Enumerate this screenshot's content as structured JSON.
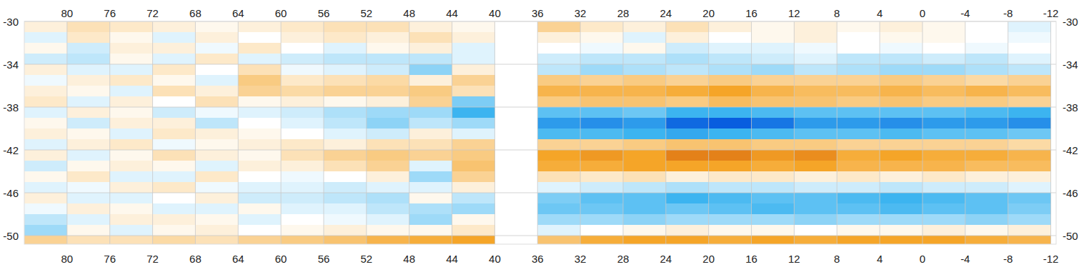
{
  "chart_data": {
    "type": "heatmap",
    "xlim": [
      84,
      -12.5
    ],
    "ylim": [
      -30,
      -50.8
    ],
    "xticks": [
      80,
      76,
      72,
      68,
      64,
      60,
      56,
      52,
      48,
      44,
      40,
      36,
      32,
      28,
      24,
      20,
      16,
      12,
      8,
      4,
      0,
      -4,
      -8,
      -12
    ],
    "yticks": [
      -30,
      -34,
      -38,
      -42,
      -46,
      -50
    ],
    "grid": true,
    "zlim": [
      -1,
      1
    ],
    "x_edges": [
      84,
      80,
      76,
      72,
      68,
      64,
      60,
      56,
      52,
      48,
      44,
      40,
      36,
      32,
      28,
      24,
      20,
      16,
      12,
      8,
      4,
      0,
      -4,
      -8,
      -12
    ],
    "y_edges": [
      -30,
      -31,
      -32,
      -33,
      -34,
      -35,
      -36,
      -37,
      -38,
      -39,
      -40,
      -41,
      -42,
      -43,
      -44,
      -45,
      -46,
      -47,
      -48,
      -49,
      -50,
      -50.8
    ],
    "cells": [
      [
        0.1,
        0.2,
        0.15,
        0.1,
        0.05,
        0.1,
        0.15,
        0.2,
        0.2,
        0.1,
        0.05,
        null,
        0.3,
        0.15,
        0.1,
        0.2,
        0.1,
        0.05,
        0.1,
        0.05,
        0.1,
        0.05,
        0.0,
        -0.1
      ],
      [
        -0.1,
        0.15,
        0.05,
        -0.1,
        0.1,
        0.0,
        0.1,
        0.15,
        0.1,
        0.2,
        0.1,
        null,
        0.1,
        0.05,
        -0.1,
        0.1,
        0.0,
        0.05,
        0.1,
        0.0,
        0.05,
        0.05,
        0.0,
        -0.05
      ],
      [
        0.05,
        -0.15,
        0.1,
        0.1,
        -0.05,
        0.15,
        0.0,
        -0.1,
        0.05,
        0.1,
        -0.1,
        null,
        0.0,
        -0.05,
        0.05,
        -0.15,
        -0.1,
        -0.1,
        -0.05,
        0.0,
        -0.05,
        0.0,
        -0.05,
        0.0
      ],
      [
        -0.15,
        -0.2,
        0.05,
        -0.1,
        0.15,
        -0.1,
        -0.15,
        -0.2,
        -0.2,
        -0.2,
        -0.1,
        null,
        -0.15,
        -0.2,
        -0.2,
        -0.25,
        -0.2,
        -0.15,
        -0.1,
        -0.2,
        -0.2,
        -0.15,
        -0.2,
        -0.1
      ],
      [
        0.1,
        -0.1,
        -0.1,
        0.15,
        0.0,
        0.2,
        -0.05,
        -0.1,
        -0.15,
        -0.35,
        0.1,
        null,
        -0.2,
        -0.3,
        -0.25,
        -0.2,
        -0.25,
        -0.3,
        -0.2,
        -0.25,
        -0.3,
        -0.3,
        -0.25,
        -0.2
      ],
      [
        -0.05,
        0.1,
        0.15,
        0.05,
        -0.1,
        0.35,
        0.15,
        0.2,
        0.25,
        0.1,
        0.3,
        null,
        0.35,
        0.3,
        0.35,
        0.3,
        0.35,
        0.3,
        0.3,
        0.3,
        0.35,
        0.3,
        0.25,
        0.3
      ],
      [
        0.1,
        0.05,
        -0.1,
        0.2,
        0.1,
        0.3,
        0.25,
        0.3,
        0.3,
        0.35,
        0.2,
        null,
        0.5,
        0.5,
        0.5,
        0.55,
        0.6,
        0.5,
        0.45,
        0.45,
        0.5,
        0.45,
        0.5,
        0.45
      ],
      [
        0.15,
        -0.1,
        0.1,
        0.0,
        0.2,
        0.05,
        0.1,
        0.05,
        0.1,
        0.3,
        -0.4,
        null,
        0.35,
        0.4,
        0.4,
        0.35,
        0.45,
        0.4,
        0.4,
        0.35,
        0.4,
        0.35,
        0.35,
        0.3
      ],
      [
        -0.1,
        0.1,
        0.05,
        -0.15,
        -0.05,
        -0.1,
        -0.15,
        -0.25,
        -0.3,
        -0.3,
        -0.6,
        null,
        -0.5,
        -0.5,
        -0.45,
        -0.6,
        -0.6,
        -0.55,
        -0.5,
        -0.5,
        -0.5,
        -0.5,
        -0.55,
        -0.6
      ],
      [
        0.05,
        -0.15,
        0.1,
        0.1,
        -0.2,
        0.0,
        -0.1,
        -0.2,
        -0.35,
        -0.2,
        -0.3,
        null,
        -0.7,
        -0.75,
        -0.7,
        -0.9,
        -0.95,
        -0.85,
        -0.7,
        -0.7,
        -0.75,
        -0.7,
        -0.7,
        -0.75
      ],
      [
        0.1,
        0.05,
        -0.1,
        0.15,
        0.1,
        0.05,
        0.0,
        -0.1,
        -0.15,
        0.1,
        -0.1,
        null,
        -0.55,
        -0.55,
        -0.6,
        -0.65,
        -0.6,
        -0.55,
        -0.5,
        -0.5,
        -0.55,
        -0.5,
        -0.5,
        -0.45
      ],
      [
        -0.1,
        0.1,
        0.15,
        -0.05,
        0.05,
        0.1,
        0.15,
        0.1,
        0.2,
        0.2,
        0.3,
        null,
        0.3,
        0.3,
        0.35,
        0.4,
        0.4,
        0.35,
        0.35,
        0.3,
        0.3,
        0.3,
        0.3,
        0.25
      ],
      [
        0.1,
        -0.1,
        0.05,
        0.2,
        0.1,
        0.05,
        0.2,
        0.3,
        0.35,
        0.3,
        0.35,
        null,
        0.6,
        0.65,
        0.6,
        0.75,
        0.75,
        0.65,
        0.7,
        0.55,
        0.6,
        0.55,
        0.55,
        0.5
      ],
      [
        -0.15,
        0.05,
        0.1,
        0.05,
        -0.1,
        0.1,
        0.1,
        0.2,
        0.3,
        -0.1,
        0.4,
        null,
        0.55,
        0.55,
        0.6,
        0.6,
        0.6,
        0.55,
        0.6,
        0.5,
        0.5,
        0.5,
        0.45,
        0.45
      ],
      [
        0.05,
        0.15,
        -0.1,
        -0.1,
        0.15,
        0.0,
        -0.05,
        0.0,
        0.1,
        -0.3,
        0.3,
        null,
        0.2,
        0.15,
        0.2,
        0.1,
        0.15,
        0.15,
        0.1,
        0.15,
        0.1,
        0.15,
        0.1,
        0.1
      ],
      [
        -0.1,
        -0.05,
        0.1,
        0.15,
        -0.05,
        -0.1,
        -0.1,
        -0.15,
        -0.1,
        -0.1,
        0.1,
        null,
        -0.1,
        -0.15,
        -0.2,
        -0.25,
        -0.2,
        -0.2,
        -0.15,
        -0.15,
        -0.2,
        -0.15,
        -0.15,
        -0.1
      ],
      [
        0.1,
        -0.1,
        -0.1,
        0.0,
        0.1,
        -0.15,
        -0.15,
        -0.2,
        -0.25,
        0.05,
        -0.2,
        null,
        -0.4,
        -0.5,
        -0.5,
        -0.6,
        -0.55,
        -0.5,
        -0.5,
        -0.55,
        -0.6,
        -0.55,
        -0.5,
        -0.45
      ],
      [
        -0.05,
        0.1,
        0.05,
        -0.1,
        -0.1,
        0.05,
        -0.1,
        -0.1,
        -0.2,
        -0.25,
        -0.3,
        null,
        -0.45,
        -0.45,
        -0.5,
        -0.45,
        -0.5,
        -0.55,
        -0.5,
        -0.5,
        -0.55,
        -0.5,
        -0.5,
        -0.4
      ],
      [
        -0.2,
        -0.1,
        0.1,
        0.1,
        0.05,
        -0.1,
        0.0,
        -0.05,
        -0.1,
        -0.3,
        0.05,
        null,
        -0.3,
        -0.3,
        -0.35,
        -0.3,
        -0.3,
        -0.3,
        -0.35,
        -0.3,
        -0.3,
        -0.3,
        -0.35,
        -0.3
      ],
      [
        -0.3,
        0.05,
        -0.1,
        0.05,
        0.1,
        0.0,
        0.05,
        0.1,
        0.05,
        0.05,
        0.15,
        null,
        -0.1,
        0.0,
        0.05,
        0.1,
        0.05,
        0.05,
        0.0,
        0.05,
        0.05,
        0.1,
        0.05,
        0.1
      ],
      [
        0.3,
        0.2,
        0.2,
        0.25,
        0.2,
        0.3,
        0.35,
        0.4,
        0.5,
        0.55,
        0.6,
        null,
        0.4,
        0.55,
        0.6,
        0.6,
        0.55,
        0.6,
        0.55,
        0.6,
        0.6,
        0.6,
        0.55,
        0.5
      ]
    ]
  }
}
